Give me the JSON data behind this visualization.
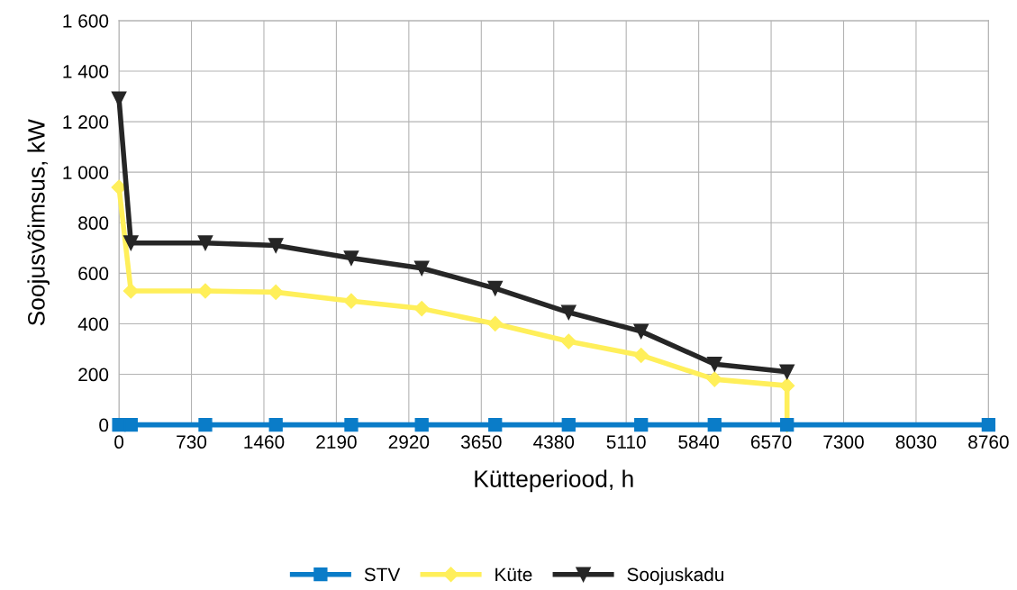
{
  "chart_data": {
    "type": "line",
    "xlabel": "Kütteperiood, h",
    "ylabel": "Soojusvõimsus, kW",
    "xlim": [
      0,
      8760
    ],
    "xticks": [
      0,
      730,
      1460,
      2190,
      2920,
      3650,
      4380,
      5110,
      5840,
      6570,
      7300,
      8030,
      8760
    ],
    "ylim": [
      0,
      1600
    ],
    "yticks": [
      0,
      200,
      400,
      600,
      800,
      {
        "value": 1000,
        "label": "1 000"
      },
      {
        "value": 1200,
        "label": "1 200"
      },
      {
        "value": 1400,
        "label": "1 400"
      },
      {
        "value": 1600,
        "label": "1 600"
      }
    ],
    "grid": true,
    "legend": "bottom",
    "series": [
      {
        "name": "STV",
        "color": "#0a7cc8",
        "marker": "square",
        "x": [
          0,
          120,
          870,
          1580,
          2340,
          3050,
          3790,
          4530,
          5260,
          6000,
          6730,
          8760
        ],
        "values": [
          0,
          0,
          0,
          0,
          0,
          0,
          0,
          0,
          0,
          0,
          0,
          0
        ]
      },
      {
        "name": "Küte",
        "color": "#ffef5a",
        "marker": "diamond",
        "x": [
          0,
          120,
          870,
          1580,
          2340,
          3050,
          3790,
          4530,
          5260,
          6000,
          6730,
          6730
        ],
        "values": [
          940,
          530,
          530,
          525,
          490,
          460,
          400,
          330,
          275,
          180,
          155,
          0
        ]
      },
      {
        "name": "Soojuskadu",
        "color": "#262626",
        "marker": "triangle",
        "x": [
          0,
          120,
          870,
          1580,
          2340,
          3050,
          3790,
          4530,
          5260,
          6000,
          6730
        ],
        "values": [
          1290,
          720,
          720,
          710,
          660,
          620,
          540,
          445,
          370,
          240,
          210
        ]
      }
    ]
  }
}
